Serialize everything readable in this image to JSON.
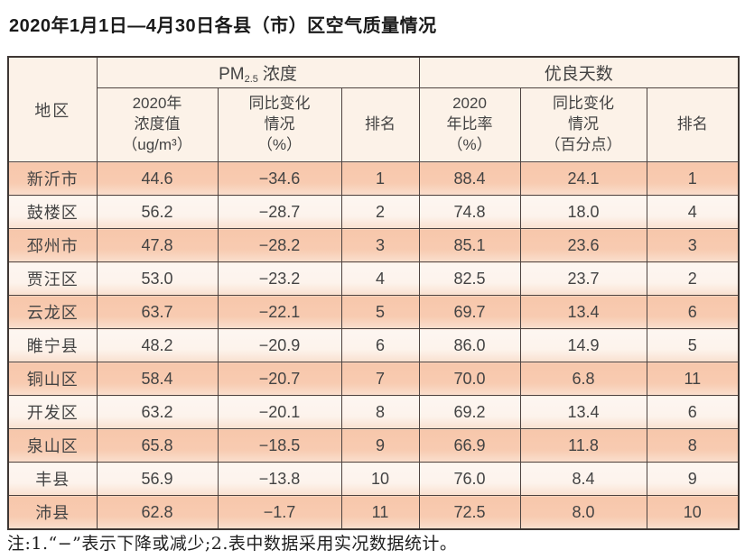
{
  "title": "2020年1月1日—4月30日各县（市）区空气质量情况",
  "table": {
    "header": {
      "region": "地区",
      "pm25_group": {
        "prefix": "PM",
        "sub": "2.5",
        "suffix": "浓度"
      },
      "good_days_group": "优良天数",
      "pm25_cols": [
        {
          "lines": [
            "2020年",
            "浓度值",
            "（ug/m³）"
          ]
        },
        {
          "lines": [
            "同比变化",
            "情况",
            "（%）"
          ]
        },
        {
          "lines": [
            "排名"
          ]
        }
      ],
      "good_cols": [
        {
          "lines": [
            "2020",
            "年比率",
            "（%）"
          ]
        },
        {
          "lines": [
            "同比变化",
            "情况",
            "（百分点）"
          ]
        },
        {
          "lines": [
            "排名"
          ]
        }
      ]
    },
    "rows": [
      {
        "region": "新沂市",
        "pm25_value": "44.6",
        "pm25_change": "−34.6",
        "pm25_rank": "1",
        "good_rate": "88.4",
        "good_change": "24.1",
        "good_rank": "1"
      },
      {
        "region": "鼓楼区",
        "pm25_value": "56.2",
        "pm25_change": "−28.7",
        "pm25_rank": "2",
        "good_rate": "74.8",
        "good_change": "18.0",
        "good_rank": "4"
      },
      {
        "region": "邳州市",
        "pm25_value": "47.8",
        "pm25_change": "−28.2",
        "pm25_rank": "3",
        "good_rate": "85.1",
        "good_change": "23.6",
        "good_rank": "3"
      },
      {
        "region": "贾汪区",
        "pm25_value": "53.0",
        "pm25_change": "−23.2",
        "pm25_rank": "4",
        "good_rate": "82.5",
        "good_change": "23.7",
        "good_rank": "2"
      },
      {
        "region": "云龙区",
        "pm25_value": "63.7",
        "pm25_change": "−22.1",
        "pm25_rank": "5",
        "good_rate": "69.7",
        "good_change": "13.4",
        "good_rank": "6"
      },
      {
        "region": "睢宁县",
        "pm25_value": "48.2",
        "pm25_change": "−20.9",
        "pm25_rank": "6",
        "good_rate": "86.0",
        "good_change": "14.9",
        "good_rank": "5"
      },
      {
        "region": "铜山区",
        "pm25_value": "58.4",
        "pm25_change": "−20.7",
        "pm25_rank": "7",
        "good_rate": "70.0",
        "good_change": "6.8",
        "good_rank": "11"
      },
      {
        "region": "开发区",
        "pm25_value": "63.2",
        "pm25_change": "−20.1",
        "pm25_rank": "8",
        "good_rate": "69.2",
        "good_change": "13.4",
        "good_rank": "6"
      },
      {
        "region": "泉山区",
        "pm25_value": "65.8",
        "pm25_change": "−18.5",
        "pm25_rank": "9",
        "good_rate": "66.9",
        "good_change": "11.8",
        "good_rank": "8"
      },
      {
        "region": "丰县",
        "pm25_value": "56.9",
        "pm25_change": "−13.8",
        "pm25_rank": "10",
        "good_rate": "76.0",
        "good_change": "8.4",
        "good_rank": "9"
      },
      {
        "region": "沛县",
        "pm25_value": "62.8",
        "pm25_change": "−1.7",
        "pm25_rank": "11",
        "good_rate": "72.5",
        "good_change": "8.0",
        "good_rank": "10"
      }
    ]
  },
  "footnote": "注:1.“−”表示下降或减少;2.表中数据采用实况数据统计。"
}
